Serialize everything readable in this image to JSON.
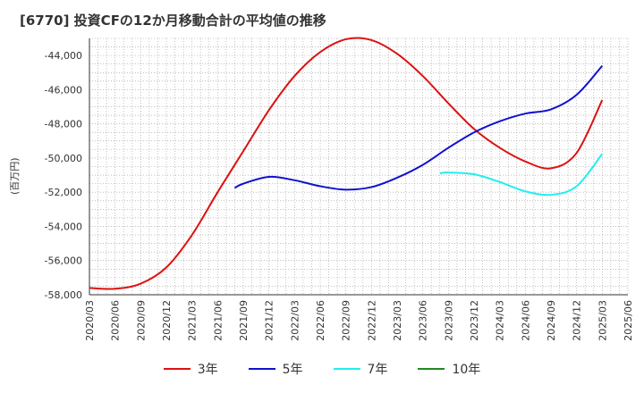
{
  "title": "[6770]  投資CFの12か月移動合計の平均値の推移",
  "ylabel": "(百万円)",
  "chart_data": {
    "type": "line",
    "title": "[6770]  投資CFの12か月移動合計の平均値の推移",
    "ylabel": "(百万円)",
    "xlabel": "",
    "ylim": [
      -58000,
      -43000
    ],
    "yticks": [
      -44000,
      -46000,
      -48000,
      -50000,
      -52000,
      -54000,
      -56000,
      -58000
    ],
    "ytick_labels": [
      "-44,000",
      "-46,000",
      "-48,000",
      "-50,000",
      "-52,000",
      "-54,000",
      "-56,000",
      "-58,000"
    ],
    "xticks": [
      "2020/03",
      "2020/06",
      "2020/09",
      "2020/12",
      "2021/03",
      "2021/06",
      "2021/09",
      "2021/12",
      "2022/03",
      "2022/06",
      "2022/09",
      "2022/12",
      "2023/03",
      "2023/06",
      "2023/09",
      "2023/12",
      "2024/03",
      "2024/06",
      "2024/09",
      "2024/12",
      "2025/03",
      "2025/06"
    ],
    "grid": true,
    "legend_position": "bottom",
    "series": [
      {
        "name": "3年",
        "color": "#dd1111",
        "x": [
          "2020/03",
          "2020/06",
          "2020/09",
          "2020/12",
          "2021/03",
          "2021/06",
          "2021/09",
          "2021/12",
          "2022/03",
          "2022/06",
          "2022/09",
          "2022/12",
          "2023/03",
          "2023/06",
          "2023/09",
          "2023/12",
          "2024/03",
          "2024/06",
          "2024/09",
          "2024/12",
          "2025/03"
        ],
        "values": [
          -57600,
          -57650,
          -57350,
          -56400,
          -54500,
          -52000,
          -49600,
          -47200,
          -45200,
          -43800,
          -43050,
          -43100,
          -43900,
          -45200,
          -46800,
          -48300,
          -49400,
          -50200,
          -50600,
          -49700,
          -46600
        ]
      },
      {
        "name": "5年",
        "color": "#1111cc",
        "x": [
          "2021/08",
          "2021/09",
          "2021/12",
          "2022/03",
          "2022/06",
          "2022/09",
          "2022/12",
          "2023/03",
          "2023/06",
          "2023/09",
          "2023/12",
          "2024/03",
          "2024/06",
          "2024/09",
          "2024/12",
          "2025/03"
        ],
        "values": [
          -51750,
          -51500,
          -51100,
          -51300,
          -51650,
          -51850,
          -51700,
          -51150,
          -50400,
          -49400,
          -48500,
          -47850,
          -47400,
          -47150,
          -46300,
          -44600
        ]
      },
      {
        "name": "7年",
        "color": "#22eeee",
        "x": [
          "2023/08",
          "2023/09",
          "2023/12",
          "2024/03",
          "2024/06",
          "2024/09",
          "2024/12",
          "2025/03"
        ],
        "values": [
          -50900,
          -50850,
          -50950,
          -51400,
          -51950,
          -52150,
          -51650,
          -49750
        ]
      },
      {
        "name": "10年",
        "color": "#228822",
        "x": [],
        "values": []
      }
    ]
  }
}
